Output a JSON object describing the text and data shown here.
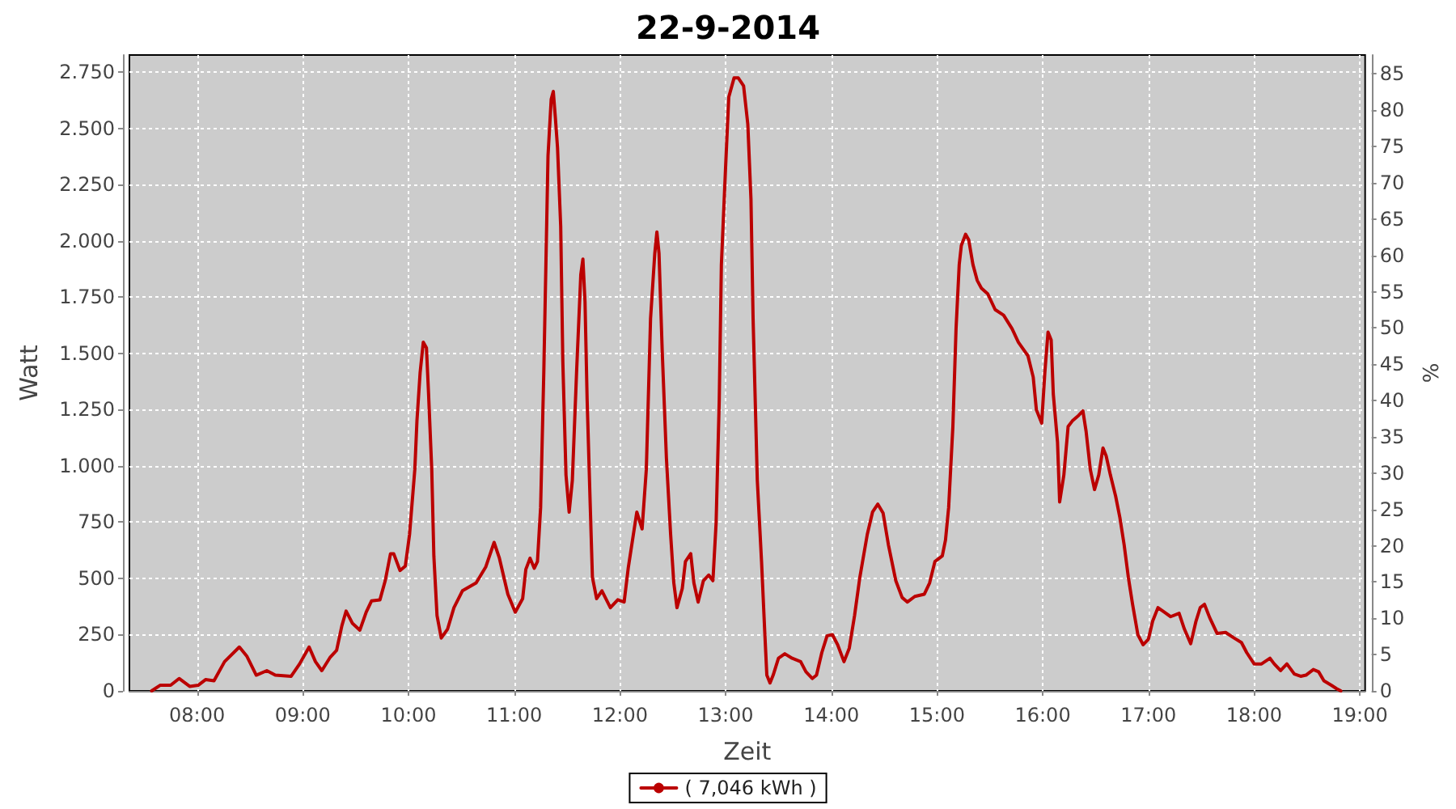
{
  "chart_data": {
    "type": "line",
    "title": "22-9-2014",
    "xlabel": "Zeit",
    "ylabel": "Watt",
    "y2label": "%",
    "x": [
      7.57,
      7.65,
      7.75,
      7.83,
      7.93,
      8.01,
      8.08,
      8.16,
      8.26,
      8.4,
      8.47,
      8.56,
      8.66,
      8.74,
      8.89,
      8.97,
      9.06,
      9.12,
      9.18,
      9.26,
      9.32,
      9.37,
      9.41,
      9.47,
      9.54,
      9.6,
      9.65,
      9.73,
      9.78,
      9.83,
      9.86,
      9.92,
      9.97,
      10.01,
      10.06,
      10.08,
      10.11,
      10.14,
      10.17,
      10.19,
      10.22,
      10.24,
      10.27,
      10.31,
      10.37,
      10.43,
      10.51,
      10.64,
      10.73,
      10.81,
      10.86,
      10.94,
      11.01,
      11.08,
      11.11,
      11.15,
      11.19,
      11.22,
      11.25,
      11.28,
      11.32,
      11.35,
      11.37,
      11.39,
      11.41,
      11.44,
      11.46,
      11.49,
      11.52,
      11.55,
      11.59,
      11.63,
      11.65,
      11.67,
      11.69,
      11.72,
      11.74,
      11.78,
      11.83,
      11.91,
      11.98,
      12.04,
      12.08,
      12.16,
      12.21,
      12.25,
      12.29,
      12.33,
      12.35,
      12.37,
      12.4,
      12.44,
      12.48,
      12.51,
      12.54,
      12.59,
      12.62,
      12.67,
      12.7,
      12.74,
      12.79,
      12.84,
      12.88,
      12.91,
      12.94,
      12.96,
      13.0,
      13.03,
      13.08,
      13.12,
      13.17,
      13.21,
      13.24,
      13.26,
      13.3,
      13.34,
      13.37,
      13.39,
      13.42,
      13.45,
      13.5,
      13.56,
      13.63,
      13.71,
      13.76,
      13.82,
      13.86,
      13.91,
      13.96,
      14.01,
      14.06,
      14.12,
      14.17,
      14.22,
      14.27,
      14.34,
      14.39,
      14.44,
      14.49,
      14.54,
      14.61,
      14.67,
      14.72,
      14.79,
      14.88,
      14.93,
      14.98,
      15.05,
      15.08,
      15.11,
      15.15,
      15.18,
      15.21,
      15.23,
      15.27,
      15.3,
      15.34,
      15.38,
      15.42,
      15.48,
      15.55,
      15.63,
      15.71,
      15.77,
      15.86,
      15.91,
      15.94,
      15.99,
      16.02,
      16.05,
      16.08,
      16.1,
      16.14,
      16.16,
      16.2,
      16.24,
      16.28,
      16.34,
      16.38,
      16.41,
      16.45,
      16.49,
      16.53,
      16.57,
      16.6,
      16.64,
      16.69,
      16.73,
      16.77,
      16.81,
      16.85,
      16.9,
      16.95,
      17.0,
      17.04,
      17.09,
      17.15,
      17.21,
      17.29,
      17.34,
      17.4,
      17.45,
      17.49,
      17.53,
      17.58,
      17.65,
      17.73,
      17.81,
      17.88,
      17.93,
      18.0,
      18.07,
      18.15,
      18.19,
      18.25,
      18.31,
      18.38,
      18.44,
      18.49,
      18.56,
      18.61,
      18.66,
      18.73,
      18.78,
      18.82
    ],
    "series": [
      {
        "name": "( 7,046 kWh )",
        "color": "#bb0000",
        "values": [
          0,
          25,
          25,
          55,
          20,
          25,
          50,
          45,
          130,
          195,
          155,
          70,
          90,
          70,
          65,
          120,
          195,
          130,
          90,
          150,
          180,
          290,
          355,
          300,
          270,
          350,
          400,
          405,
          490,
          610,
          610,
          535,
          555,
          695,
          985,
          1200,
          1415,
          1550,
          1525,
          1320,
          985,
          600,
          335,
          235,
          275,
          370,
          445,
          480,
          550,
          660,
          590,
          430,
          350,
          410,
          540,
          590,
          545,
          575,
          815,
          1415,
          2380,
          2630,
          2665,
          2545,
          2415,
          2065,
          1465,
          960,
          795,
          935,
          1415,
          1850,
          1920,
          1730,
          1295,
          815,
          505,
          410,
          445,
          370,
          405,
          395,
          550,
          795,
          720,
          985,
          1655,
          1945,
          2040,
          1945,
          1515,
          1035,
          695,
          480,
          370,
          455,
          575,
          610,
          480,
          395,
          490,
          515,
          490,
          745,
          1295,
          1895,
          2330,
          2640,
          2725,
          2725,
          2690,
          2520,
          2185,
          1655,
          935,
          575,
          265,
          70,
          35,
          70,
          145,
          165,
          145,
          130,
          85,
          55,
          70,
          170,
          245,
          250,
          205,
          130,
          190,
          335,
          505,
          695,
          795,
          830,
          790,
          650,
          490,
          415,
          395,
          420,
          430,
          480,
          575,
          600,
          670,
          815,
          1175,
          1610,
          1895,
          1980,
          2030,
          2005,
          1895,
          1825,
          1790,
          1765,
          1695,
          1670,
          1610,
          1550,
          1490,
          1395,
          1250,
          1190,
          1415,
          1595,
          1560,
          1320,
          1105,
          840,
          960,
          1175,
          1200,
          1225,
          1245,
          1155,
          985,
          895,
          960,
          1080,
          1045,
          960,
          865,
          770,
          650,
          505,
          385,
          250,
          205,
          230,
          310,
          370,
          350,
          330,
          345,
          275,
          210,
          310,
          370,
          385,
          325,
          255,
          260,
          235,
          215,
          170,
          120,
          120,
          145,
          120,
          90,
          120,
          75,
          65,
          70,
          95,
          85,
          45,
          25,
          10,
          0
        ]
      }
    ],
    "xlim": [
      7.36,
      19.05
    ],
    "xticks": [
      {
        "value": 8,
        "label": "08:00"
      },
      {
        "value": 9,
        "label": "09:00"
      },
      {
        "value": 10,
        "label": "10:00"
      },
      {
        "value": 11,
        "label": "11:00"
      },
      {
        "value": 12,
        "label": "12:00"
      },
      {
        "value": 13,
        "label": "13:00"
      },
      {
        "value": 14,
        "label": "14:00"
      },
      {
        "value": 15,
        "label": "15:00"
      },
      {
        "value": 16,
        "label": "16:00"
      },
      {
        "value": 17,
        "label": "17:00"
      },
      {
        "value": 18,
        "label": "18:00"
      },
      {
        "value": 19,
        "label": "19:00"
      }
    ],
    "ylim": [
      0,
      2827
    ],
    "yticks": [
      0,
      250,
      500,
      750,
      {
        "value": 1000,
        "label": "1.000"
      },
      {
        "value": 1250,
        "label": "1.250"
      },
      {
        "value": 1500,
        "label": "1.500"
      },
      {
        "value": 1750,
        "label": "1.750"
      },
      {
        "value": 2000,
        "label": "2.000"
      },
      {
        "value": 2250,
        "label": "2.250"
      },
      {
        "value": 2500,
        "label": "2.500"
      },
      {
        "value": 2750,
        "label": "2.750"
      }
    ],
    "y2lim": [
      0,
      87.6
    ],
    "y2ticks": [
      0,
      5,
      10,
      15,
      20,
      25,
      30,
      35,
      40,
      45,
      50,
      55,
      60,
      65,
      70,
      75,
      80,
      85
    ],
    "grid": true,
    "legend": "bottom",
    "marker": "none"
  }
}
